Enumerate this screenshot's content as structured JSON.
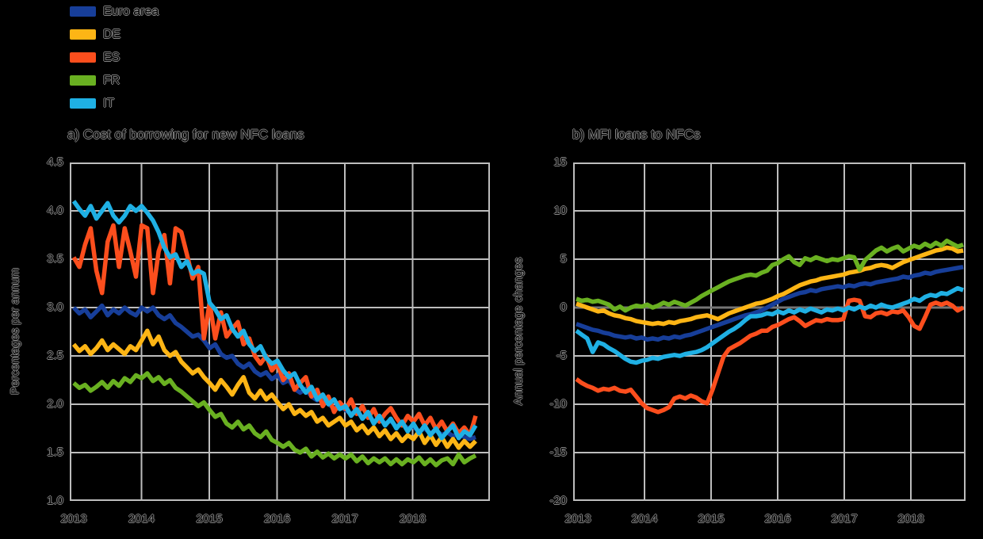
{
  "legend": {
    "items": [
      {
        "label": "Euro area",
        "color": "#173e99"
      },
      {
        "label": "DE",
        "color": "#fdb515"
      },
      {
        "label": "ES",
        "color": "#fc4e1d"
      },
      {
        "label": "FR",
        "color": "#69b021"
      },
      {
        "label": "IT",
        "color": "#1fb0e4"
      }
    ]
  },
  "chart_data": [
    {
      "id": "a",
      "type": "line",
      "title": "a) Cost of borrowing for new NFC loans",
      "ylabel": "Percentages per annum",
      "x_labels": [
        "2013",
        "2014",
        "2015",
        "2016",
        "2017",
        "2018"
      ],
      "x_range_note": "monthly, Jan 2013 - Dec 2018",
      "ylim": [
        1.0,
        4.5
      ],
      "yticks": [
        4.5,
        4.0,
        3.5,
        3.0,
        2.5,
        2.0,
        1.5,
        1.0
      ],
      "ytick_labels": [
        "4.5",
        "4.0",
        "3.5",
        "3.0",
        "2.5",
        "2.0",
        "1.5",
        "1.0"
      ],
      "grid": true,
      "zero_line": false,
      "legend_position": "outside-top-left",
      "series": [
        {
          "name": "Euro area",
          "color": "#173e99",
          "values": [
            3.0,
            2.94,
            2.98,
            2.9,
            2.96,
            3.02,
            2.92,
            2.98,
            2.94,
            3.0,
            2.95,
            2.92,
            3.0,
            2.96,
            3.0,
            2.92,
            2.88,
            2.92,
            2.84,
            2.8,
            2.75,
            2.7,
            2.72,
            2.66,
            2.58,
            2.62,
            2.52,
            2.48,
            2.5,
            2.42,
            2.38,
            2.42,
            2.34,
            2.3,
            2.33,
            2.26,
            2.3,
            2.22,
            2.25,
            2.16,
            2.12,
            2.16,
            2.08,
            2.04,
            2.08,
            2.0,
            1.96,
            2.0,
            1.94,
            1.9,
            1.94,
            1.86,
            1.9,
            1.82,
            1.86,
            1.8,
            1.83,
            1.77,
            1.8,
            1.75,
            1.77,
            1.72,
            1.75,
            1.7,
            1.73,
            1.68,
            1.71,
            1.67,
            1.7,
            1.66,
            1.64,
            1.66
          ]
        },
        {
          "name": "DE",
          "color": "#fdb515",
          "values": [
            2.62,
            2.55,
            2.6,
            2.52,
            2.58,
            2.66,
            2.56,
            2.62,
            2.57,
            2.52,
            2.6,
            2.56,
            2.66,
            2.76,
            2.62,
            2.7,
            2.56,
            2.5,
            2.54,
            2.44,
            2.38,
            2.32,
            2.36,
            2.28,
            2.22,
            2.15,
            2.25,
            2.18,
            2.1,
            2.2,
            2.28,
            2.12,
            2.06,
            2.14,
            2.05,
            2.1,
            2.02,
            1.95,
            2.0,
            1.9,
            1.94,
            1.88,
            1.92,
            1.82,
            1.86,
            1.78,
            1.82,
            1.86,
            1.78,
            1.82,
            1.73,
            1.78,
            1.7,
            1.76,
            1.67,
            1.73,
            1.64,
            1.7,
            1.62,
            1.68,
            1.64,
            1.72,
            1.6,
            1.68,
            1.58,
            1.66,
            1.56,
            1.64,
            1.55,
            1.62,
            1.56,
            1.62
          ]
        },
        {
          "name": "ES",
          "color": "#fc4e1d",
          "values": [
            3.52,
            3.42,
            3.65,
            3.82,
            3.38,
            3.15,
            3.68,
            3.85,
            3.42,
            3.82,
            3.58,
            3.32,
            3.85,
            3.82,
            3.15,
            3.58,
            3.75,
            3.25,
            3.82,
            3.78,
            3.55,
            3.3,
            3.42,
            2.68,
            3.05,
            2.68,
            2.95,
            2.7,
            2.78,
            2.85,
            2.62,
            2.68,
            2.5,
            2.42,
            2.5,
            2.35,
            2.42,
            2.25,
            2.32,
            2.15,
            2.22,
            2.28,
            2.08,
            2.15,
            1.98,
            2.08,
            1.92,
            2.02,
            1.95,
            2.05,
            1.9,
            1.98,
            1.86,
            1.95,
            1.82,
            1.9,
            1.96,
            1.86,
            1.78,
            1.88,
            1.82,
            1.9,
            1.78,
            1.86,
            1.74,
            1.82,
            1.72,
            1.8,
            1.7,
            1.76,
            1.68,
            1.88
          ]
        },
        {
          "name": "FR",
          "color": "#69b021",
          "values": [
            2.22,
            2.17,
            2.2,
            2.14,
            2.18,
            2.23,
            2.17,
            2.24,
            2.19,
            2.27,
            2.23,
            2.3,
            2.27,
            2.32,
            2.24,
            2.28,
            2.21,
            2.25,
            2.17,
            2.13,
            2.08,
            2.03,
            1.98,
            2.02,
            1.94,
            1.87,
            1.9,
            1.8,
            1.76,
            1.82,
            1.74,
            1.78,
            1.7,
            1.66,
            1.72,
            1.63,
            1.6,
            1.56,
            1.6,
            1.53,
            1.5,
            1.54,
            1.46,
            1.51,
            1.45,
            1.49,
            1.44,
            1.48,
            1.44,
            1.48,
            1.41,
            1.46,
            1.39,
            1.44,
            1.4,
            1.44,
            1.38,
            1.43,
            1.38,
            1.43,
            1.4,
            1.45,
            1.38,
            1.43,
            1.37,
            1.42,
            1.44,
            1.38,
            1.48,
            1.4,
            1.44,
            1.47
          ]
        },
        {
          "name": "IT",
          "color": "#1fb0e4",
          "values": [
            4.1,
            4.02,
            3.95,
            4.05,
            3.92,
            4.0,
            4.08,
            3.95,
            3.88,
            3.95,
            4.05,
            4.0,
            4.05,
            3.98,
            3.9,
            3.78,
            3.62,
            3.52,
            3.55,
            3.42,
            3.48,
            3.35,
            3.38,
            3.35,
            3.05,
            2.98,
            2.88,
            2.92,
            2.78,
            2.7,
            2.76,
            2.62,
            2.55,
            2.6,
            2.48,
            2.42,
            2.45,
            2.35,
            2.28,
            2.32,
            2.2,
            2.12,
            2.18,
            2.05,
            2.1,
            2.0,
            2.05,
            1.95,
            1.98,
            1.88,
            1.95,
            1.85,
            1.92,
            1.8,
            1.88,
            1.78,
            1.85,
            1.75,
            1.82,
            1.72,
            1.8,
            1.7,
            1.78,
            1.68,
            1.75,
            1.65,
            1.72,
            1.78,
            1.65,
            1.72,
            1.68,
            1.78
          ]
        }
      ]
    },
    {
      "id": "b",
      "type": "line",
      "title": "b) MFI loans to NFCs",
      "ylabel": "Annual percentage changes",
      "x_labels": [
        "2013",
        "2014",
        "2015",
        "2016",
        "2017",
        "2018"
      ],
      "x_range_note": "monthly, Jan 2013 - Dec 2018",
      "ylim": [
        -20,
        15
      ],
      "yticks": [
        15,
        10,
        5,
        0,
        -5,
        -10,
        -15,
        -20
      ],
      "ytick_labels": [
        "15",
        "10",
        "5",
        "0",
        "-5",
        "-10",
        "-15",
        "-20"
      ],
      "grid": true,
      "zero_line": true,
      "legend_position": "shared",
      "series": [
        {
          "name": "Euro area",
          "color": "#173e99",
          "values": [
            -1.7,
            -1.9,
            -2.1,
            -2.3,
            -2.4,
            -2.6,
            -2.7,
            -2.9,
            -3.0,
            -3.1,
            -3.0,
            -3.2,
            -3.1,
            -3.3,
            -3.2,
            -3.3,
            -3.1,
            -3.2,
            -3.0,
            -3.1,
            -2.9,
            -2.8,
            -2.6,
            -2.4,
            -2.2,
            -2.0,
            -1.8,
            -1.6,
            -1.4,
            -1.2,
            -1.0,
            -0.8,
            -0.7,
            -0.5,
            -0.3,
            0.0,
            0.3,
            0.6,
            0.9,
            1.1,
            1.3,
            1.5,
            1.6,
            1.8,
            1.7,
            1.9,
            2.0,
            2.1,
            2.2,
            2.1,
            2.3,
            2.2,
            2.4,
            2.5,
            2.4,
            2.6,
            2.7,
            2.8,
            2.9,
            3.0,
            3.2,
            3.1,
            3.3,
            3.4,
            3.6,
            3.5,
            3.7,
            3.8,
            3.9,
            4.0,
            4.1,
            4.2
          ]
        },
        {
          "name": "DE",
          "color": "#fdb515",
          "values": [
            0.4,
            0.2,
            0.0,
            -0.2,
            -0.4,
            -0.3,
            -0.6,
            -0.8,
            -0.9,
            -1.1,
            -1.2,
            -1.4,
            -1.5,
            -1.6,
            -1.7,
            -1.6,
            -1.7,
            -1.5,
            -1.6,
            -1.4,
            -1.3,
            -1.2,
            -1.0,
            -0.9,
            -0.8,
            -1.0,
            -1.2,
            -0.9,
            -0.6,
            -0.4,
            -0.2,
            0.0,
            0.2,
            0.4,
            0.5,
            0.7,
            0.9,
            1.2,
            1.4,
            1.7,
            2.0,
            2.3,
            2.5,
            2.7,
            2.8,
            3.0,
            3.1,
            3.2,
            3.3,
            3.4,
            3.6,
            3.7,
            3.8,
            4.0,
            4.1,
            4.3,
            4.4,
            4.3,
            4.1,
            4.4,
            4.7,
            4.9,
            5.1,
            5.3,
            5.5,
            5.7,
            5.9,
            6.0,
            6.2,
            6.1,
            5.8,
            5.9
          ]
        },
        {
          "name": "ES",
          "color": "#fc4e1d",
          "values": [
            -7.4,
            -7.8,
            -8.1,
            -8.3,
            -8.6,
            -8.4,
            -8.5,
            -8.3,
            -8.6,
            -8.7,
            -8.5,
            -9.2,
            -9.9,
            -10.4,
            -10.6,
            -10.8,
            -10.6,
            -10.3,
            -9.4,
            -9.2,
            -9.4,
            -9.1,
            -9.3,
            -9.7,
            -9.9,
            -8.5,
            -6.8,
            -5.1,
            -4.3,
            -4.0,
            -3.7,
            -3.3,
            -2.9,
            -2.7,
            -2.4,
            -2.4,
            -2.0,
            -1.8,
            -1.5,
            -1.2,
            -1.0,
            -1.4,
            -1.9,
            -1.6,
            -1.3,
            -1.4,
            -1.2,
            -1.3,
            -1.3,
            -1.2,
            0.7,
            0.8,
            0.7,
            -0.9,
            -1.0,
            -0.6,
            -0.5,
            -0.7,
            -0.4,
            -0.5,
            -0.3,
            -1.0,
            -1.9,
            -2.2,
            -1.0,
            0.3,
            0.5,
            0.3,
            0.5,
            0.2,
            -0.3,
            0.0
          ]
        },
        {
          "name": "FR",
          "color": "#69b021",
          "values": [
            0.9,
            0.7,
            0.8,
            0.6,
            0.7,
            0.5,
            0.3,
            -0.2,
            0.1,
            -0.3,
            0.0,
            0.2,
            0.1,
            0.3,
            0.0,
            0.2,
            0.5,
            0.3,
            0.6,
            0.4,
            0.2,
            0.5,
            0.8,
            1.2,
            1.5,
            1.8,
            2.1,
            2.4,
            2.7,
            2.9,
            3.1,
            3.3,
            3.4,
            3.3,
            3.6,
            3.8,
            4.4,
            4.6,
            5.0,
            5.3,
            4.7,
            4.4,
            5.1,
            4.9,
            5.2,
            5.0,
            4.8,
            5.0,
            4.9,
            5.1,
            5.3,
            5.2,
            3.9,
            4.9,
            5.4,
            5.9,
            6.2,
            5.8,
            6.1,
            6.3,
            5.8,
            6.1,
            6.4,
            6.2,
            6.6,
            6.3,
            6.7,
            6.4,
            6.9,
            6.6,
            6.3,
            6.5
          ]
        },
        {
          "name": "IT",
          "color": "#1fb0e4",
          "values": [
            -2.4,
            -2.8,
            -3.2,
            -4.6,
            -3.6,
            -3.8,
            -4.2,
            -4.5,
            -4.9,
            -5.3,
            -5.6,
            -5.7,
            -5.5,
            -5.4,
            -5.2,
            -5.3,
            -5.1,
            -5.0,
            -4.9,
            -5.0,
            -4.8,
            -4.7,
            -4.6,
            -4.4,
            -4.1,
            -3.7,
            -3.3,
            -2.9,
            -2.5,
            -2.2,
            -1.8,
            -1.3,
            -0.9,
            -0.9,
            -0.8,
            -0.6,
            -0.7,
            -0.4,
            -0.6,
            -0.3,
            -0.5,
            -0.2,
            -0.4,
            -0.1,
            -0.3,
            -0.5,
            -0.2,
            -0.3,
            -0.1,
            -0.3,
            0.0,
            -0.2,
            0.1,
            -0.1,
            0.2,
            0.0,
            0.3,
            0.1,
            0.0,
            0.2,
            0.4,
            0.6,
            0.9,
            0.7,
            1.1,
            1.3,
            1.2,
            1.5,
            1.4,
            1.7,
            2.0,
            1.8
          ]
        }
      ]
    }
  ]
}
